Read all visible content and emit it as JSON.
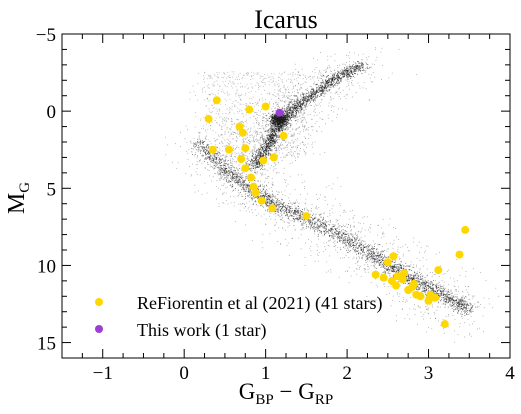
{
  "chart_data": {
    "type": "scatter",
    "title": "Icarus",
    "xlabel": {
      "main": "G",
      "sub1": "BP",
      "mid": " − G",
      "sub2": "RP"
    },
    "ylabel": {
      "main": "M",
      "sub": "G"
    },
    "xlim": [
      -1.5,
      4.0
    ],
    "ylim": [
      -5.0,
      16.0
    ],
    "y_inverted": true,
    "grid": false,
    "legend_position": "bottom-left",
    "x_ticks": [
      {
        "value": -1,
        "label": "−1"
      },
      {
        "value": 0,
        "label": "0"
      },
      {
        "value": 1,
        "label": "1"
      },
      {
        "value": 2,
        "label": "2"
      },
      {
        "value": 3,
        "label": "3"
      },
      {
        "value": 4,
        "label": "4"
      }
    ],
    "y_ticks": [
      {
        "value": -5,
        "label": "−5"
      },
      {
        "value": 0,
        "label": "0"
      },
      {
        "value": 5,
        "label": "5"
      },
      {
        "value": 10,
        "label": "10"
      },
      {
        "value": 15,
        "label": "15"
      }
    ],
    "background_population": {
      "color": "#1a1a1a",
      "main_sequence": [
        [
          0.15,
          2.0
        ],
        [
          0.5,
          3.8
        ],
        [
          0.8,
          5.0
        ],
        [
          1.1,
          6.0
        ],
        [
          1.5,
          7.0
        ],
        [
          1.9,
          8.0
        ],
        [
          2.3,
          9.3
        ],
        [
          2.6,
          10.3
        ],
        [
          2.9,
          11.2
        ],
        [
          3.2,
          12.0
        ],
        [
          3.5,
          12.8
        ]
      ],
      "red_giant_branch": [
        [
          0.85,
          3.6
        ],
        [
          0.95,
          2.8
        ],
        [
          1.05,
          2.0
        ],
        [
          1.12,
          1.2
        ],
        [
          1.2,
          0.6
        ],
        [
          1.3,
          0.0
        ],
        [
          1.5,
          -0.8
        ],
        [
          1.7,
          -1.6
        ],
        [
          1.9,
          -2.3
        ],
        [
          2.2,
          -3.0
        ]
      ],
      "red_clump": [
        1.15,
        0.5
      ]
    },
    "series": [
      {
        "name": "ReFiorentin et al (2021) (41 stars)",
        "color": "#ffd700",
        "points": [
          [
            0.3,
            0.5
          ],
          [
            0.35,
            2.5
          ],
          [
            0.4,
            -0.7
          ],
          [
            0.55,
            2.5
          ],
          [
            0.68,
            1.0
          ],
          [
            0.72,
            1.4
          ],
          [
            0.7,
            3.1
          ],
          [
            0.75,
            2.4
          ],
          [
            0.8,
            -0.1
          ],
          [
            0.75,
            3.7
          ],
          [
            0.82,
            4.3
          ],
          [
            0.85,
            4.9
          ],
          [
            0.88,
            5.3
          ],
          [
            0.95,
            5.8
          ],
          [
            0.97,
            3.2
          ],
          [
            1.0,
            -0.3
          ],
          [
            1.08,
            6.3
          ],
          [
            1.1,
            3.0
          ],
          [
            1.22,
            1.6
          ],
          [
            1.5,
            6.8
          ],
          [
            2.35,
            10.6
          ],
          [
            2.45,
            10.8
          ],
          [
            2.5,
            9.8
          ],
          [
            2.55,
            11.0
          ],
          [
            2.57,
            9.4
          ],
          [
            2.6,
            11.3
          ],
          [
            2.62,
            10.7
          ],
          [
            2.7,
            10.5
          ],
          [
            2.75,
            11.6
          ],
          [
            2.82,
            11.2
          ],
          [
            2.85,
            11.9
          ],
          [
            2.9,
            12.0
          ],
          [
            3.0,
            12.3
          ],
          [
            3.02,
            11.9
          ],
          [
            3.08,
            12.1
          ],
          [
            3.12,
            10.3
          ],
          [
            3.2,
            13.8
          ],
          [
            3.38,
            9.3
          ],
          [
            3.45,
            7.7
          ],
          [
            2.8,
            11.4
          ],
          [
            2.68,
            10.9
          ]
        ]
      },
      {
        "name": "This work (1 star)",
        "color": "#9b3fd4",
        "points": [
          [
            1.17,
            0.1
          ]
        ]
      }
    ]
  }
}
